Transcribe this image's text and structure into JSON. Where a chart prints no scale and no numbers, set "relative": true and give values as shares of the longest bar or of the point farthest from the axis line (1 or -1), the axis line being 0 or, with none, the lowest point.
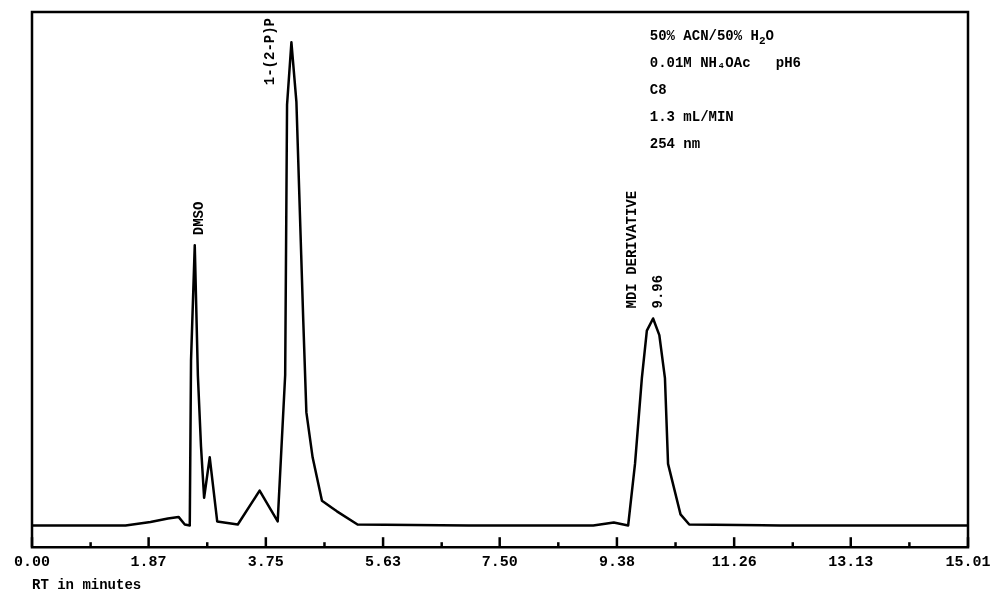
{
  "chart_data": {
    "type": "line",
    "relative": true,
    "xlabel": "RT in minutes",
    "grid": false,
    "legend": false,
    "marker": "none",
    "line_style": "solid",
    "tick_labels": "x",
    "xlim": [
      0,
      15.01
    ],
    "xticks": [
      {
        "value": 0,
        "label": "0.00"
      },
      {
        "value": 0.94,
        "label": null
      },
      1.87,
      {
        "value": 2.81,
        "label": null
      },
      3.75,
      {
        "value": 4.69,
        "label": null
      },
      5.63,
      {
        "value": 6.57,
        "label": null
      },
      {
        "value": 7.5,
        "label": "7.50"
      },
      {
        "value": 8.44,
        "label": null
      },
      9.38,
      {
        "value": 10.32,
        "label": null
      },
      11.26,
      {
        "value": 12.2,
        "label": null
      },
      13.13,
      {
        "value": 14.07,
        "label": null
      },
      {
        "value": 15.01,
        "label": "15.01"
      }
    ],
    "series": [
      {
        "color": "#000000",
        "x": [
          0,
          1.5,
          1.9,
          2.18,
          2.35,
          2.45,
          2.53,
          2.55,
          2.61,
          2.66,
          2.71,
          2.76,
          2.85,
          2.97,
          3.3,
          3.65,
          3.94,
          4.06,
          4.09,
          4.16,
          4.24,
          4.35,
          4.4,
          4.5,
          4.65,
          4.89,
          5.22,
          7,
          9.0,
          9.33,
          9.56,
          9.67,
          9.78,
          9.86,
          9.96,
          10.06,
          10.15,
          10.2,
          10.4,
          10.54,
          12,
          15.01
        ],
        "values": [
          0.043,
          0.043,
          0.05,
          0.057,
          0.06,
          0.045,
          0.043,
          0.369,
          0.598,
          0.34,
          0.2,
          0.098,
          0.178,
          0.051,
          0.045,
          0.112,
          0.051,
          0.341,
          0.876,
          1.0,
          0.882,
          0.449,
          0.267,
          0.178,
          0.092,
          0.071,
          0.045,
          0.043,
          0.043,
          0.049,
          0.043,
          0.165,
          0.335,
          0.429,
          0.453,
          0.42,
          0.335,
          0.165,
          0.065,
          0.045,
          0.043,
          0.043
        ]
      }
    ],
    "annotations": [
      {
        "text": "DMSO",
        "x": 2.61,
        "y": 0.598
      },
      {
        "text": "1-(2-P)P",
        "x": 4.16,
        "y": 1.0
      },
      {
        "text": "MDI DERIVATIVE",
        "x": 9.96,
        "y": 0.453
      },
      {
        "text": "9.96",
        "x": 9.96,
        "y": 0.453
      },
      "50% ACN/50% H$_{2}$O",
      "0.01M NH₄OAc   pH6",
      "C8",
      "1.3 mL/MIN",
      "254 nm"
    ]
  }
}
